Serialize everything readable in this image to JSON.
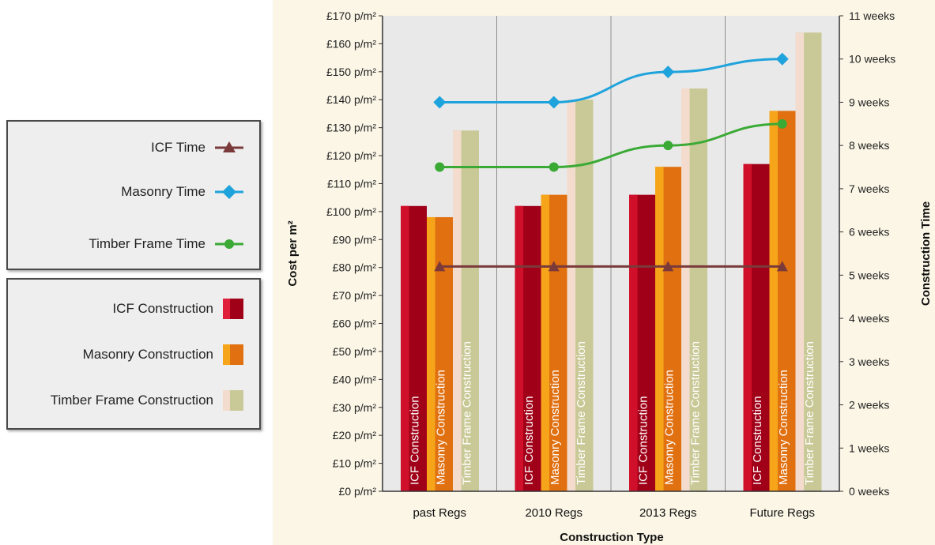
{
  "legend": {
    "lines": [
      {
        "label": "ICF Time",
        "color": "#7a3a3a",
        "marker": "triangle-icon"
      },
      {
        "label": "Masonry Time",
        "color": "#1fa3dc",
        "marker": "diamond-icon"
      },
      {
        "label": "Timber Frame Time",
        "color": "#3aaa35",
        "marker": "circle-icon"
      }
    ],
    "bars": [
      {
        "label": "ICF Construction",
        "colors": [
          "#d0102a",
          "#a00018"
        ]
      },
      {
        "label": "Masonry Construction",
        "colors": [
          "#f6a51a",
          "#e07010"
        ]
      },
      {
        "label": "Timber Frame Construction",
        "colors": [
          "#f3dccd",
          "#c9c997"
        ]
      }
    ]
  },
  "chart_data": {
    "type": "bar",
    "xlabel": "Construction Type",
    "ylabel": "Cost per m²",
    "y2label": "Construction Time",
    "categories": [
      "past Regs",
      "2010 Regs",
      "2013 Regs",
      "Future Regs"
    ],
    "ylim": [
      0,
      170
    ],
    "yticks": [
      "£0 p/m²",
      "£10 p/m²",
      "£20 p/m²",
      "£30 p/m²",
      "£40 p/m²",
      "£50 p/m²",
      "£60 p/m²",
      "£70 p/m²",
      "£80 p/m²",
      "£90 p/m²",
      "£100 p/m²",
      "£110 p/m²",
      "£120 p/m²",
      "£130 p/m²",
      "£140 p/m²",
      "£150 p/m²",
      "£160 p/m²",
      "£170 p/m²"
    ],
    "y2lim": [
      0,
      11
    ],
    "y2ticks": [
      "0 weeks",
      "1 weeks",
      "2 weeks",
      "3 weeks",
      "4 weeks",
      "5 weeks",
      "6 weeks",
      "7 weeks",
      "8 weeks",
      "9 weeks",
      "10 weeks",
      "11 weeks"
    ],
    "series": [
      {
        "name": "ICF Construction",
        "values": [
          102,
          102,
          106,
          117
        ],
        "bar_label": "ICF Construction",
        "colors": [
          "#d0102a",
          "#a00018"
        ]
      },
      {
        "name": "Masonry Construction",
        "values": [
          98,
          106,
          116,
          136
        ],
        "bar_label": "Masonry Construction",
        "colors": [
          "#f6a51a",
          "#e07010"
        ]
      },
      {
        "name": "Timber Frame Construction",
        "values": [
          129,
          140,
          144,
          164
        ],
        "bar_label": "Timber Frame Construction",
        "colors": [
          "#f3dccd",
          "#c9c997"
        ]
      }
    ],
    "lines": [
      {
        "name": "ICF Time",
        "values": [
          5.2,
          5.2,
          5.2,
          5.2
        ],
        "color": "#7a3a3a",
        "marker": "triangle"
      },
      {
        "name": "Masonry Time",
        "values": [
          9.0,
          9.0,
          9.7,
          10.0
        ],
        "color": "#1fa3dc",
        "marker": "diamond"
      },
      {
        "name": "Timber Frame Time",
        "values": [
          7.5,
          7.5,
          8.0,
          8.5
        ],
        "color": "#3aaa35",
        "marker": "circle"
      }
    ],
    "grid": "vertical category separators",
    "legend": "left"
  }
}
